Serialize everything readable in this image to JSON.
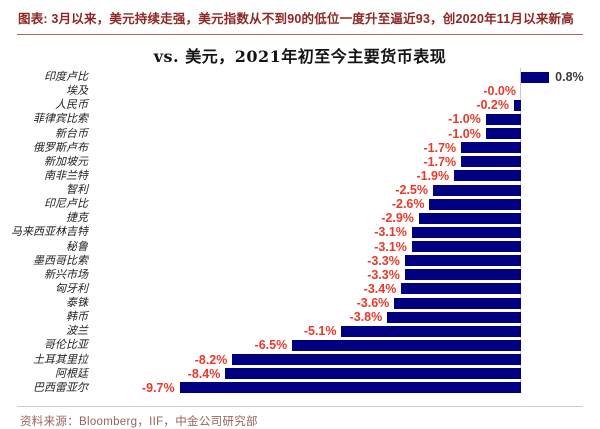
{
  "header": {
    "note": "图表: 3月以来，美元持续走强，美元指数从不到90的低位一度升至逼近93，创2020年11月以来新高"
  },
  "chart_data": {
    "type": "bar",
    "orientation": "horizontal",
    "title": "vs. 美元，2021年初至今主要货币表现",
    "categories": [
      "印度卢比",
      "埃及",
      "人民币",
      "菲律宾比索",
      "新台币",
      "俄罗斯卢布",
      "新加坡元",
      "南非兰特",
      "智利",
      "印尼卢比",
      "捷克",
      "马来西亚林吉特",
      "秘鲁",
      "墨西哥比索",
      "新兴市场",
      "匈牙利",
      "泰铢",
      "韩币",
      "波兰",
      "哥伦比亚",
      "土耳其里拉",
      "阿根廷",
      "巴西雷亚尔"
    ],
    "values": [
      0.8,
      -0.0,
      -0.2,
      -1.0,
      -1.0,
      -1.7,
      -1.7,
      -1.9,
      -2.5,
      -2.6,
      -2.9,
      -3.1,
      -3.1,
      -3.3,
      -3.3,
      -3.4,
      -3.6,
      -3.8,
      -5.1,
      -6.5,
      -8.2,
      -8.4,
      -9.7
    ],
    "value_labels": [
      "0.8%",
      "-0.0%",
      "-0.2%",
      "-1.0%",
      "-1.0%",
      "-1.7%",
      "-1.7%",
      "-1.9%",
      "-2.5%",
      "-2.6%",
      "-2.9%",
      "-3.1%",
      "-3.1%",
      "-3.3%",
      "-3.3%",
      "-3.4%",
      "-3.6%",
      "-3.8%",
      "-5.1%",
      "-6.5%",
      "-8.2%",
      "-8.4%",
      "-9.7%"
    ],
    "xlim": [
      -12.2,
      2.2
    ],
    "unit": "%",
    "grid": false,
    "legend": false,
    "bar_color": "#000080",
    "negative_label_color": "#e8392c",
    "positive_label_color": "#3c3c3c",
    "zero_axis_color": "#c9c9c9"
  },
  "footer": {
    "source": "资料来源：Bloomberg，IIF，中金公司研究部"
  }
}
